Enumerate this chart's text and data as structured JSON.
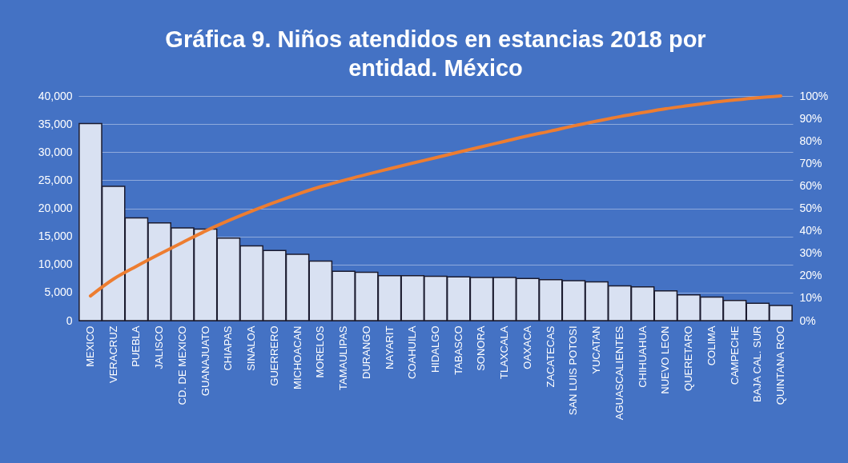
{
  "chart_data": {
    "type": "bar",
    "title": "Gráfica 9. Niños atendidos en estancias 2018 por entidad. México",
    "categories": [
      "MEXICO",
      "VERACRUZ",
      "PUEBLA",
      "JALISCO",
      "CD. DE MEXICO",
      "GUANAJUATO",
      "CHIAPAS",
      "SINALOA",
      "GUERRERO",
      "MICHOACAN",
      "MORELOS",
      "TAMAULIPAS",
      "DURANGO",
      "NAYARIT",
      "COAHUILA",
      "HIDALGO",
      "TABASCO",
      "SONORA",
      "TLAXCALA",
      "OAXACA",
      "ZACATECAS",
      "SAN LUIS POTOSI",
      "YUCATAN",
      "AGUASCALIENTES",
      "CHIHUAHUA",
      "NUEVO LEON",
      "QUERETARO",
      "COLIMA",
      "CAMPECHE",
      "BAJA CAL. SUR",
      "QUINTANA ROO"
    ],
    "series": [
      {
        "type": "bar",
        "color": "#d9e1f2",
        "values": [
          35100,
          23900,
          18300,
          17400,
          16500,
          16300,
          14700,
          13300,
          12500,
          11800,
          10600,
          8800,
          8600,
          8000,
          8000,
          7900,
          7800,
          7700,
          7700,
          7500,
          7300,
          7100,
          6900,
          6200,
          6000,
          5300,
          4600,
          4200,
          3600,
          3100,
          2700
        ]
      },
      {
        "type": "line",
        "axis": "y2",
        "color": "#ed7d31",
        "values": [
          11.0,
          18.5,
          24.2,
          29.6,
          34.8,
          39.9,
          44.5,
          48.7,
          52.6,
          56.3,
          59.6,
          62.4,
          65.1,
          67.6,
          70.1,
          72.5,
          75.0,
          77.4,
          79.8,
          82.2,
          84.4,
          86.7,
          88.8,
          90.8,
          92.6,
          94.3,
          95.7,
          97.1,
          98.2,
          99.2,
          100
        ]
      }
    ],
    "ylim": [
      0,
      40000
    ],
    "yticks": [
      {
        "value": 0,
        "label": "0"
      },
      {
        "value": 5000,
        "label": "5,000"
      },
      {
        "value": 10000,
        "label": "10,000"
      },
      {
        "value": 15000,
        "label": "15,000"
      },
      {
        "value": 20000,
        "label": "20,000"
      },
      {
        "value": 25000,
        "label": "25,000"
      },
      {
        "value": 30000,
        "label": "30,000"
      },
      {
        "value": 35000,
        "label": "35,000"
      },
      {
        "value": 40000,
        "label": "40,000"
      }
    ],
    "y2lim": [
      0,
      100
    ],
    "y2ticks": [
      {
        "value": 0,
        "label": "0%"
      },
      {
        "value": 10,
        "label": "10%"
      },
      {
        "value": 20,
        "label": "20%"
      },
      {
        "value": 30,
        "label": "30%"
      },
      {
        "value": 40,
        "label": "40%"
      },
      {
        "value": 50,
        "label": "50%"
      },
      {
        "value": 60,
        "label": "60%"
      },
      {
        "value": 70,
        "label": "70%"
      },
      {
        "value": 80,
        "label": "80%"
      },
      {
        "value": 90,
        "label": "90%"
      },
      {
        "value": 100,
        "label": "100%"
      }
    ],
    "grid": "y",
    "legend": false,
    "marker": "none",
    "line_style": "solid"
  }
}
